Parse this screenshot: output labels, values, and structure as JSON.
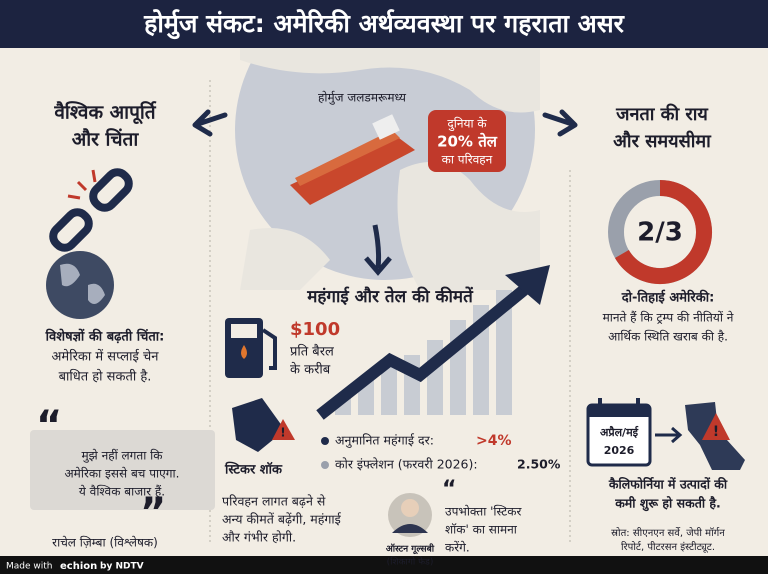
{
  "header": {
    "title": "होर्मुज संकट: अमेरिकी अर्थव्यवस्था पर गहराता असर"
  },
  "map": {
    "label": "होर्मुज जलडमरूमध्य",
    "callout": [
      "दुनिया के",
      "20% तेल",
      "का परिवहन"
    ]
  },
  "left": {
    "heading": [
      "वैश्विक आपूर्ति",
      "और चिंता"
    ],
    "concern_title": "विशेषज्ञों की बढ़ती चिंता:",
    "concern_text": [
      "अमेरिका में सप्लाई चेन",
      "बाधित हो सकती है."
    ],
    "quote": [
      "मुझे नहीं लगता कि",
      "अमेरिका इससे बच पाएगा.",
      "ये वैश्विक बाजार हैं."
    ],
    "quote_author": "राचेल ज़िम्बा (विश्लेषक)"
  },
  "center": {
    "heading": "महंगाई और तेल की कीमतें",
    "price": "$100",
    "price_text": [
      "प्रति बैरल",
      "के करीब"
    ],
    "sticker_label": "स्टिकर शॉक",
    "stats": [
      {
        "label": "अनुमानित महंगाई दर:",
        "value": ">4%"
      },
      {
        "label": "कोर इंफ्लेशन (फरवरी 2026):",
        "value": "2.50%"
      }
    ],
    "transport_text": [
      "परिवहन लागत बढ़ने से",
      "अन्य कीमतें बढ़ेंगी, महंगाई",
      "और गंभीर होगी."
    ],
    "expert_name": "ऑस्टन गूल्सबी",
    "expert_org": "(शिकागो फेड)",
    "expert_quote": [
      "उपभोक्ता 'स्टिकर",
      "शॉक' का सामना",
      "करेंगे."
    ]
  },
  "right": {
    "heading": [
      "जनता की राय",
      "और समयसीमा"
    ],
    "donut_label": "2/3",
    "opinion_title": "दो-तिहाई अमेरिकी:",
    "opinion_text": [
      "मानते हैं कि ट्रम्प की नीतियों ने",
      "आर्थिक स्थिति खराब की है."
    ],
    "date": [
      "अप्रैल/मई",
      "2026"
    ],
    "california_text": [
      "कैलिफोर्निया में उत्पादों की",
      "कमी शुरू हो सकती है."
    ],
    "source": [
      "स्रोत: सीएनएन सर्वे, जेपी मॉर्गन",
      "रिपोर्ट, पीटरसन इंस्टीट्यूट."
    ]
  },
  "footer": {
    "made_with": "Made with",
    "brand": "echion",
    "by": "by NDTV"
  }
}
